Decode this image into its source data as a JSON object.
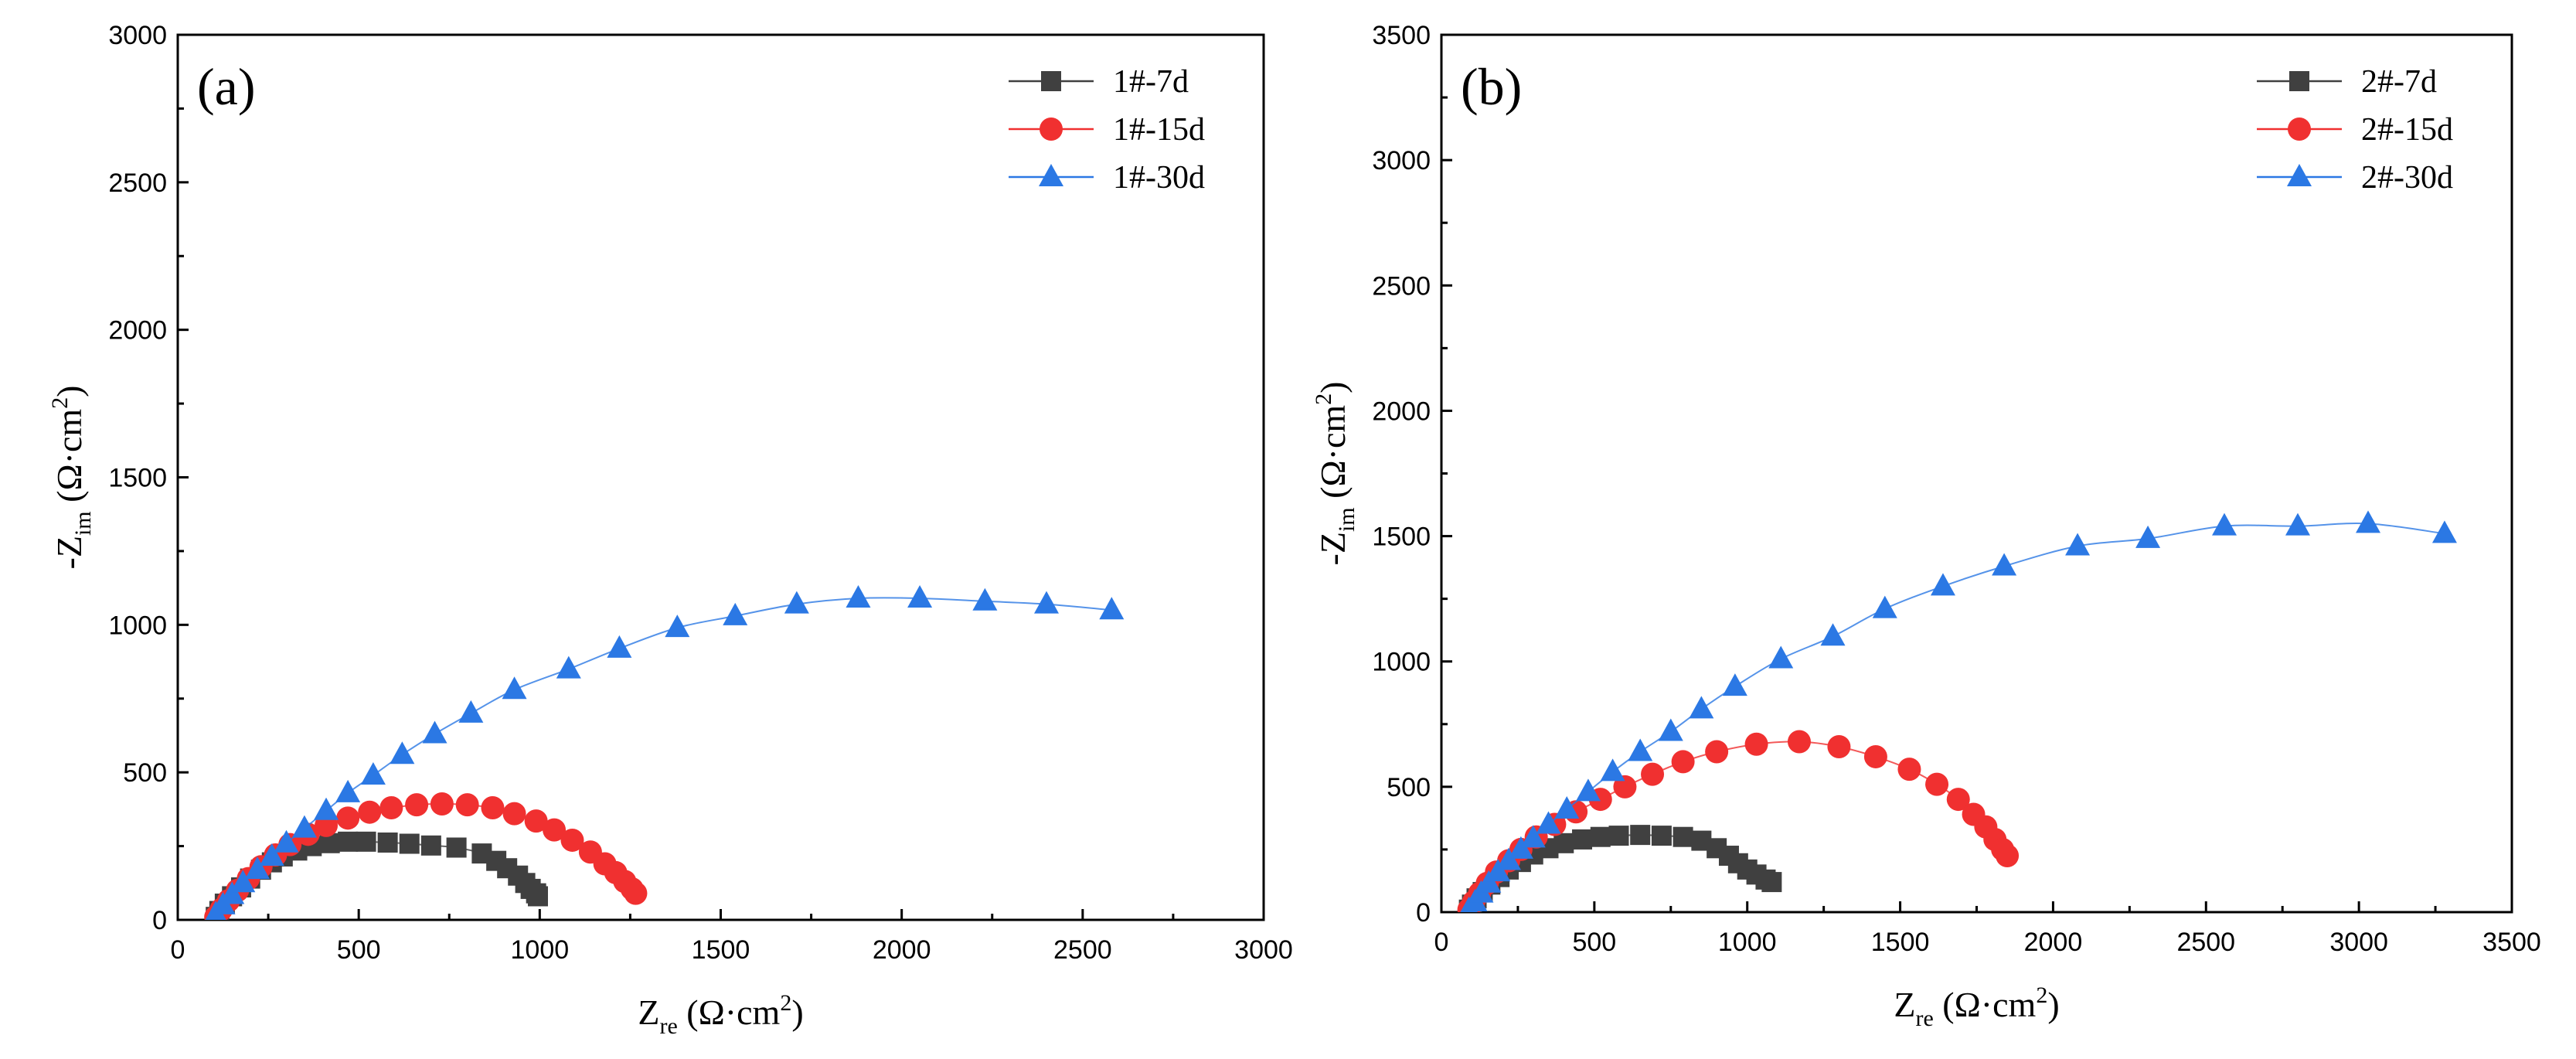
{
  "chart_data": [
    {
      "type": "scatter",
      "panel_label": "(a)",
      "xlabel": {
        "main": "Z",
        "sub": "re",
        "unit": " (Ω·cm",
        "sup": "2",
        "close": ")"
      },
      "ylabel": {
        "main": "-Z",
        "sub": "im",
        "unit": " (Ω·cm",
        "sup": "2",
        "close": ")"
      },
      "xlim": [
        0,
        3000
      ],
      "ylim": [
        0,
        3000
      ],
      "xticks": [
        "0",
        "500",
        "1000",
        "1500",
        "2000",
        "2500",
        "3000"
      ],
      "yticks": [
        "0",
        "500",
        "1000",
        "1500",
        "2000",
        "2500",
        "3000"
      ],
      "legend_position": "top-right",
      "series": [
        {
          "name": "1#-7d",
          "marker": "square",
          "color": "#404040",
          "x": [
            105,
            115,
            130,
            150,
            175,
            200,
            230,
            260,
            290,
            330,
            370,
            420,
            470,
            520,
            580,
            640,
            700,
            770,
            840,
            880,
            910,
            940,
            960,
            975,
            990,
            995
          ],
          "y": [
            10,
            30,
            55,
            80,
            110,
            140,
            170,
            195,
            215,
            235,
            250,
            260,
            265,
            265,
            262,
            258,
            252,
            245,
            225,
            200,
            175,
            150,
            125,
            105,
            90,
            80
          ]
        },
        {
          "name": "1#-15d",
          "marker": "circle",
          "color": "#f03030",
          "x": [
            105,
            120,
            140,
            165,
            195,
            230,
            270,
            310,
            360,
            410,
            470,
            530,
            590,
            660,
            730,
            800,
            870,
            930,
            990,
            1040,
            1090,
            1140,
            1180,
            1210,
            1235,
            1255,
            1265
          ],
          "y": [
            10,
            35,
            65,
            100,
            140,
            180,
            220,
            255,
            290,
            320,
            345,
            365,
            380,
            390,
            393,
            390,
            380,
            360,
            335,
            305,
            270,
            230,
            190,
            160,
            130,
            105,
            90
          ]
        },
        {
          "name": "1#-30d",
          "marker": "triangle",
          "color": "#2b78e4",
          "x": [
            105,
            125,
            150,
            180,
            220,
            260,
            300,
            350,
            410,
            470,
            540,
            620,
            710,
            810,
            930,
            1080,
            1220,
            1380,
            1540,
            1710,
            1880,
            2050,
            2230,
            2400,
            2580
          ],
          "y": [
            20,
            50,
            85,
            125,
            170,
            215,
            260,
            310,
            370,
            430,
            490,
            560,
            630,
            700,
            780,
            850,
            920,
            990,
            1030,
            1070,
            1090,
            1090,
            1080,
            1070,
            1050
          ]
        }
      ]
    },
    {
      "type": "scatter",
      "panel_label": "(b)",
      "xlabel": {
        "main": "Z",
        "sub": "re",
        "unit": " (Ω·cm",
        "sup": "2",
        "close": ")"
      },
      "ylabel": {
        "main": "-Z",
        "sub": "im",
        "unit": " (Ω·cm",
        "sup": "2",
        "close": ")"
      },
      "xlim": [
        0,
        3500
      ],
      "ylim": [
        0,
        3500
      ],
      "xticks": [
        "0",
        "500",
        "1000",
        "1500",
        "2000",
        "2500",
        "3000",
        "3500"
      ],
      "yticks": [
        "0",
        "500",
        "1000",
        "1500",
        "2000",
        "2500",
        "3000",
        "3500"
      ],
      "legend_position": "top-right",
      "series": [
        {
          "name": "2#-7d",
          "marker": "square",
          "color": "#404040",
          "x": [
            90,
            100,
            115,
            135,
            160,
            190,
            220,
            260,
            300,
            350,
            400,
            460,
            520,
            580,
            650,
            720,
            790,
            850,
            900,
            940,
            970,
            1000,
            1030,
            1060,
            1080
          ],
          "y": [
            10,
            30,
            55,
            80,
            110,
            140,
            170,
            200,
            230,
            255,
            275,
            290,
            300,
            305,
            308,
            305,
            300,
            285,
            255,
            225,
            195,
            170,
            150,
            130,
            120
          ]
        },
        {
          "name": "2#-15d",
          "marker": "circle",
          "color": "#f03030",
          "x": [
            90,
            105,
            125,
            150,
            180,
            220,
            260,
            310,
            370,
            440,
            520,
            600,
            690,
            790,
            900,
            1030,
            1170,
            1300,
            1420,
            1530,
            1620,
            1690,
            1740,
            1780,
            1810,
            1835,
            1850
          ],
          "y": [
            10,
            40,
            75,
            115,
            160,
            205,
            250,
            300,
            350,
            400,
            450,
            500,
            550,
            600,
            640,
            670,
            680,
            660,
            620,
            570,
            510,
            450,
            390,
            340,
            290,
            250,
            225
          ]
        },
        {
          "name": "2#-30d",
          "marker": "triangle",
          "color": "#2b78e4",
          "x": [
            90,
            110,
            130,
            155,
            185,
            220,
            260,
            300,
            350,
            410,
            480,
            560,
            650,
            750,
            850,
            960,
            1110,
            1280,
            1450,
            1640,
            1840,
            2080,
            2310,
            2560,
            2800,
            3030,
            3280
          ],
          "y": [
            10,
            40,
            75,
            115,
            160,
            205,
            250,
            295,
            350,
            410,
            480,
            560,
            640,
            720,
            810,
            900,
            1010,
            1100,
            1210,
            1300,
            1380,
            1460,
            1490,
            1540,
            1540,
            1550,
            1510
          ]
        }
      ]
    }
  ]
}
